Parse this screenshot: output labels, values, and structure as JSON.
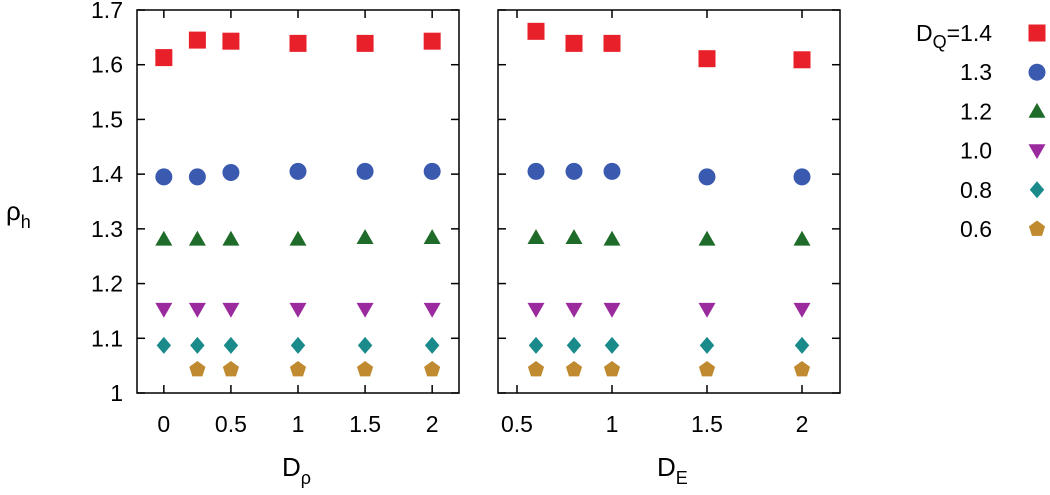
{
  "chart_data": [
    {
      "type": "scatter",
      "xlabel": {
        "main": "D",
        "sub": "ρ"
      },
      "ylabel": {
        "main": "ρ",
        "sub": "h"
      },
      "xlim": [
        -0.2,
        2.2
      ],
      "ylim": [
        1.0,
        1.7
      ],
      "xticks": [
        "0",
        "0.5",
        "1",
        "1.5",
        "2"
      ],
      "yticks": [
        "1",
        "1.1",
        "1.2",
        "1.3",
        "1.4",
        "1.5",
        "1.6",
        "1.7"
      ],
      "x": [
        0,
        0.25,
        0.5,
        1,
        1.5,
        2
      ],
      "series": [
        {
          "name": "1.4",
          "values": [
            1.613,
            1.645,
            1.643,
            1.639,
            1.639,
            1.643
          ]
        },
        {
          "name": "1.3",
          "values": [
            1.395,
            1.395,
            1.403,
            1.405,
            1.405,
            1.405
          ]
        },
        {
          "name": "1.2",
          "values": [
            1.281,
            1.281,
            1.281,
            1.281,
            1.284,
            1.284
          ]
        },
        {
          "name": "1.0",
          "values": [
            1.153,
            1.153,
            1.153,
            1.153,
            1.153,
            1.153
          ]
        },
        {
          "name": "0.8",
          "values": [
            1.087,
            1.087,
            1.087,
            1.087,
            1.087,
            1.087
          ]
        },
        {
          "name": "0.6",
          "values": [
            null,
            1.043,
            1.043,
            1.043,
            1.043,
            1.043
          ]
        }
      ]
    },
    {
      "type": "scatter",
      "xlabel": {
        "main": "D",
        "sub": "E"
      },
      "xlim": [
        0.4,
        2.2
      ],
      "ylim": [
        1.0,
        1.7
      ],
      "xticks": [
        "0.5",
        "1",
        "1.5",
        "2"
      ],
      "x": [
        0.6,
        0.8,
        1.0,
        1.5,
        2.0
      ],
      "series": [
        {
          "name": "1.4",
          "values": [
            1.661,
            1.639,
            1.639,
            1.611,
            1.609
          ]
        },
        {
          "name": "1.3",
          "values": [
            1.405,
            1.405,
            1.405,
            1.395,
            1.395
          ]
        },
        {
          "name": "1.2",
          "values": [
            1.284,
            1.284,
            1.281,
            1.281,
            1.281
          ]
        },
        {
          "name": "1.0",
          "values": [
            1.153,
            1.153,
            1.153,
            1.153,
            1.153
          ]
        },
        {
          "name": "0.8",
          "values": [
            1.087,
            1.087,
            1.087,
            1.087,
            1.087
          ]
        },
        {
          "name": "0.6",
          "values": [
            1.043,
            1.043,
            1.043,
            1.043,
            1.043
          ]
        }
      ]
    }
  ],
  "legend": {
    "placement": "right",
    "prefix": {
      "main": "D",
      "sub": "Q",
      "tail": "="
    },
    "entries": [
      "1.4",
      "1.3",
      "1.2",
      "1.0",
      "0.8",
      "0.6"
    ]
  },
  "styles": [
    {
      "marker": "square",
      "color": "#e8202a"
    },
    {
      "marker": "circle",
      "color": "#3a5ab0"
    },
    {
      "marker": "triangle-up",
      "color": "#1f6b2a"
    },
    {
      "marker": "triangle-down",
      "color": "#9b2a9e"
    },
    {
      "marker": "diamond",
      "color": "#1a8a8a"
    },
    {
      "marker": "pentagon",
      "color": "#c08a30"
    }
  ]
}
